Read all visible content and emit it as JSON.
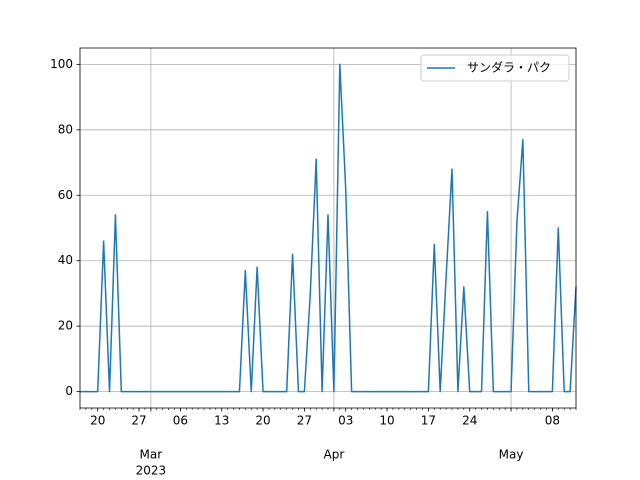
{
  "chart_data": {
    "type": "line",
    "x": [
      "2023-02-17",
      "2023-02-18",
      "2023-02-19",
      "2023-02-20",
      "2023-02-21",
      "2023-02-22",
      "2023-02-23",
      "2023-02-24",
      "2023-02-25",
      "2023-02-26",
      "2023-02-27",
      "2023-02-28",
      "2023-03-01",
      "2023-03-02",
      "2023-03-03",
      "2023-03-04",
      "2023-03-05",
      "2023-03-06",
      "2023-03-07",
      "2023-03-08",
      "2023-03-09",
      "2023-03-10",
      "2023-03-11",
      "2023-03-12",
      "2023-03-13",
      "2023-03-14",
      "2023-03-15",
      "2023-03-16",
      "2023-03-17",
      "2023-03-18",
      "2023-03-19",
      "2023-03-20",
      "2023-03-21",
      "2023-03-22",
      "2023-03-23",
      "2023-03-24",
      "2023-03-25",
      "2023-03-26",
      "2023-03-27",
      "2023-03-28",
      "2023-03-29",
      "2023-03-30",
      "2023-03-31",
      "2023-04-01",
      "2023-04-02",
      "2023-04-03",
      "2023-04-04",
      "2023-04-05",
      "2023-04-06",
      "2023-04-07",
      "2023-04-08",
      "2023-04-09",
      "2023-04-10",
      "2023-04-11",
      "2023-04-12",
      "2023-04-13",
      "2023-04-14",
      "2023-04-15",
      "2023-04-16",
      "2023-04-17",
      "2023-04-18",
      "2023-04-19",
      "2023-04-20",
      "2023-04-21",
      "2023-04-22",
      "2023-04-23",
      "2023-04-24",
      "2023-04-25",
      "2023-04-26",
      "2023-04-27",
      "2023-04-28",
      "2023-04-29",
      "2023-04-30",
      "2023-05-01",
      "2023-05-02",
      "2023-05-03",
      "2023-05-04",
      "2023-05-05",
      "2023-05-06",
      "2023-05-07",
      "2023-05-08",
      "2023-05-09",
      "2023-05-10",
      "2023-05-11",
      "2023-05-12"
    ],
    "series": [
      {
        "name": "サンダラ・パク",
        "color": "#1f77b4",
        "values": [
          0,
          0,
          0,
          0,
          46,
          0,
          54,
          0,
          0,
          0,
          0,
          0,
          0,
          0,
          0,
          0,
          0,
          0,
          0,
          0,
          0,
          0,
          0,
          0,
          0,
          0,
          0,
          0,
          37,
          0,
          38,
          0,
          0,
          0,
          0,
          0,
          42,
          0,
          0,
          30,
          71,
          0,
          54,
          0,
          100,
          62,
          0,
          0,
          0,
          0,
          0,
          0,
          0,
          0,
          0,
          0,
          0,
          0,
          0,
          0,
          45,
          0,
          35,
          68,
          0,
          32,
          0,
          0,
          0,
          55,
          0,
          0,
          0,
          0,
          52,
          77,
          0,
          0,
          0,
          0,
          0,
          50,
          0,
          0,
          32
        ]
      }
    ],
    "xlim": [
      "2023-02-17",
      "2023-05-12"
    ],
    "xticks": [
      {
        "value": "2023-02-20",
        "label": "20"
      },
      {
        "value": "2023-02-27",
        "label": "27"
      },
      {
        "value": "2023-03-01",
        "label": "Mar",
        "sublabel": "2023"
      },
      {
        "value": "2023-03-06",
        "label": "06"
      },
      {
        "value": "2023-03-13",
        "label": "13"
      },
      {
        "value": "2023-03-20",
        "label": "20"
      },
      {
        "value": "2023-03-27",
        "label": "27"
      },
      {
        "value": "2023-04-01",
        "label": "Apr"
      },
      {
        "value": "2023-04-03",
        "label": "03"
      },
      {
        "value": "2023-04-10",
        "label": "10"
      },
      {
        "value": "2023-04-17",
        "label": "17"
      },
      {
        "value": "2023-04-24",
        "label": "24"
      },
      {
        "value": "2023-05-01",
        "label": "May"
      },
      {
        "value": "2023-05-08",
        "label": "08"
      }
    ],
    "ylim": [
      -5,
      105
    ],
    "yticks": [
      0,
      20,
      40,
      60,
      80,
      100
    ],
    "grid": true,
    "legend": "upper right"
  }
}
